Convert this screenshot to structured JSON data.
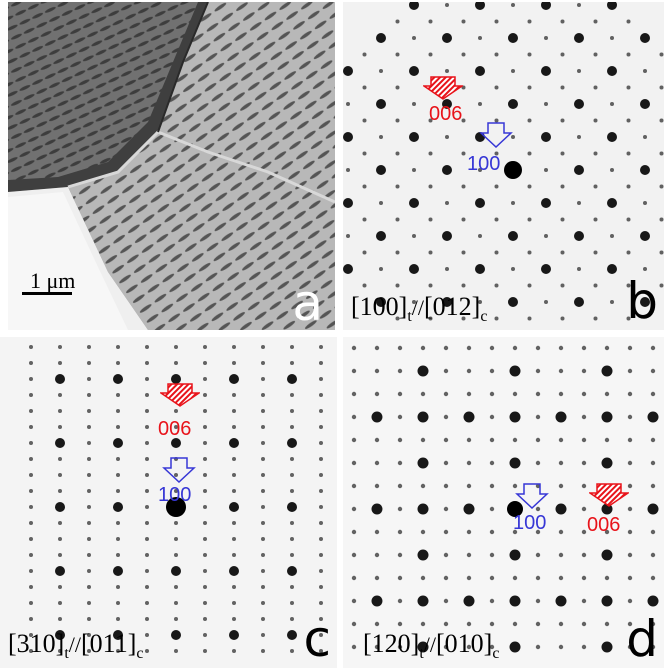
{
  "panels": {
    "a": {
      "letter": "a",
      "scale_label": "1 μm"
    },
    "b": {
      "letter": "b",
      "zone_t": "[100]",
      "sub_t": "t",
      "sep": "//",
      "zone_c": "[012]",
      "sub_c": "c",
      "index_red": "006",
      "index_blue": "100"
    },
    "c": {
      "letter": "c",
      "zone_t": "[310]",
      "sub_t": "t",
      "sep": "//",
      "zone_c": "[011]",
      "sub_c": "c",
      "index_red": "006",
      "index_blue": "100"
    },
    "d": {
      "letter": "d",
      "zone_t": "[120]",
      "sub_t": "t",
      "sep": "//",
      "zone_c": "[010]",
      "sub_c": "c",
      "index_red": "006",
      "index_blue": "100"
    }
  },
  "colors": {
    "red": "#e8131a",
    "blue": "#3737d6"
  },
  "icons": [
    "hatched-down-arrow-icon",
    "outline-down-arrow-icon"
  ]
}
